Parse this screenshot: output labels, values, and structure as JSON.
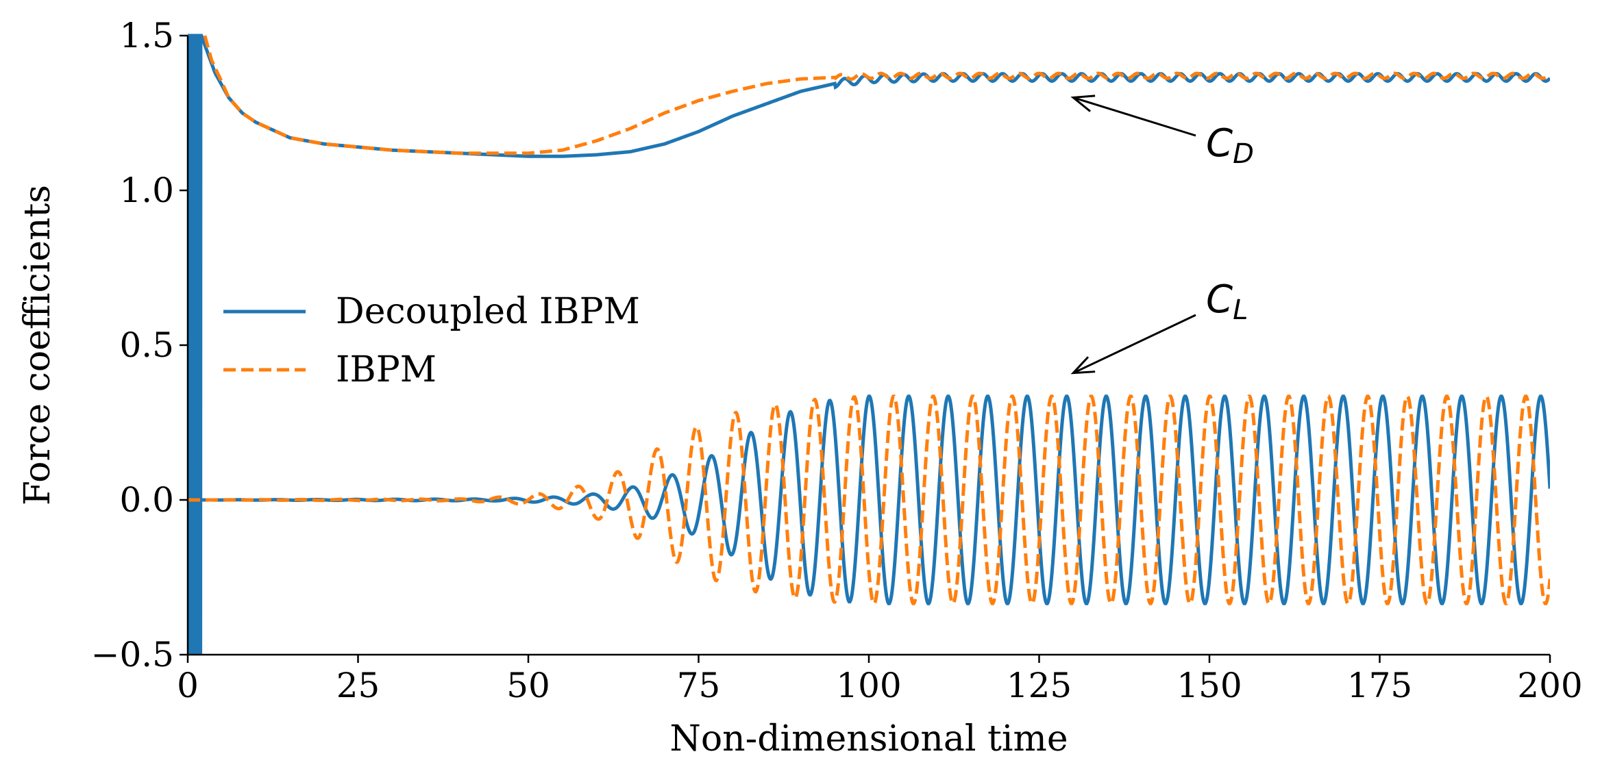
{
  "chart_data": {
    "type": "line",
    "title": "",
    "xlabel": "Non-dimensional time",
    "ylabel": "Force coefficients",
    "xlim": [
      0,
      200
    ],
    "ylim": [
      -0.5,
      1.5
    ],
    "xticks": [
      0,
      25,
      50,
      75,
      100,
      125,
      150,
      175,
      200
    ],
    "yticks": [
      -0.5,
      0.0,
      0.5,
      1.0,
      1.5
    ],
    "xtick_labels": [
      "0",
      "25",
      "50",
      "75",
      "100",
      "125",
      "150",
      "175",
      "200"
    ],
    "ytick_labels": [
      "−0.5",
      "0.0",
      "0.5",
      "1.0",
      "1.5"
    ],
    "grid": false,
    "legend_position": "center-left",
    "series": [
      {
        "name": "Decoupled IBPM",
        "color": "#1f77b4",
        "style": "solid",
        "CD": {
          "t": [
            0,
            2,
            4,
            6,
            8,
            10,
            15,
            20,
            25,
            30,
            40,
            50,
            55,
            60,
            65,
            70,
            75,
            80,
            85,
            90,
            95,
            100,
            110,
            120,
            200
          ],
          "v": [
            1.5,
            1.5,
            1.38,
            1.3,
            1.25,
            1.22,
            1.17,
            1.15,
            1.14,
            1.13,
            1.12,
            1.11,
            1.11,
            1.115,
            1.125,
            1.15,
            1.19,
            1.24,
            1.28,
            1.32,
            1.345,
            1.36,
            1.365,
            1.365,
            1.365
          ],
          "oscillation_amplitude": 0.012
        },
        "CL": {
          "amplitude": [
            [
              0,
              0
            ],
            [
              45,
              0.003
            ],
            [
              55,
              0.01
            ],
            [
              60,
              0.02
            ],
            [
              65,
              0.04
            ],
            [
              70,
              0.07
            ],
            [
              75,
              0.12
            ],
            [
              80,
              0.18
            ],
            [
              85,
              0.25
            ],
            [
              90,
              0.3
            ],
            [
              95,
              0.325
            ],
            [
              100,
              0.335
            ],
            [
              200,
              0.335
            ]
          ],
          "period": 5.8,
          "phase_shift": 0
        },
        "startup_transient": {
          "t_range": [
            0,
            2
          ],
          "ymin": -0.5,
          "ymax": 1.5
        }
      },
      {
        "name": "IBPM",
        "color": "#ff7f0e",
        "style": "dashed",
        "CD": {
          "t": [
            2.5,
            3.5,
            5,
            6,
            8,
            10,
            15,
            20,
            25,
            30,
            40,
            50,
            55,
            60,
            65,
            70,
            75,
            80,
            85,
            90,
            95,
            100,
            200
          ],
          "v": [
            1.5,
            1.42,
            1.35,
            1.3,
            1.25,
            1.22,
            1.17,
            1.15,
            1.14,
            1.13,
            1.12,
            1.12,
            1.13,
            1.16,
            1.2,
            1.25,
            1.29,
            1.32,
            1.345,
            1.36,
            1.365,
            1.37,
            1.37
          ],
          "oscillation_amplitude": 0.008
        },
        "CL": {
          "amplitude": [
            [
              0,
              0
            ],
            [
              40,
              0.003
            ],
            [
              45,
              0.008
            ],
            [
              50,
              0.015
            ],
            [
              55,
              0.03
            ],
            [
              60,
              0.06
            ],
            [
              65,
              0.11
            ],
            [
              70,
              0.18
            ],
            [
              75,
              0.24
            ],
            [
              80,
              0.28
            ],
            [
              85,
              0.305
            ],
            [
              90,
              0.32
            ],
            [
              95,
              0.33
            ],
            [
              100,
              0.335
            ],
            [
              200,
              0.335
            ]
          ],
          "period": 5.8,
          "phase_shift": 2.2
        }
      }
    ],
    "annotations": [
      {
        "name": "CD",
        "main": "C",
        "sub": "D",
        "arrow_to": [
          130,
          1.3
        ]
      },
      {
        "name": "CL",
        "main": "C",
        "sub": "L",
        "arrow_to": [
          130,
          0.41
        ]
      }
    ]
  }
}
